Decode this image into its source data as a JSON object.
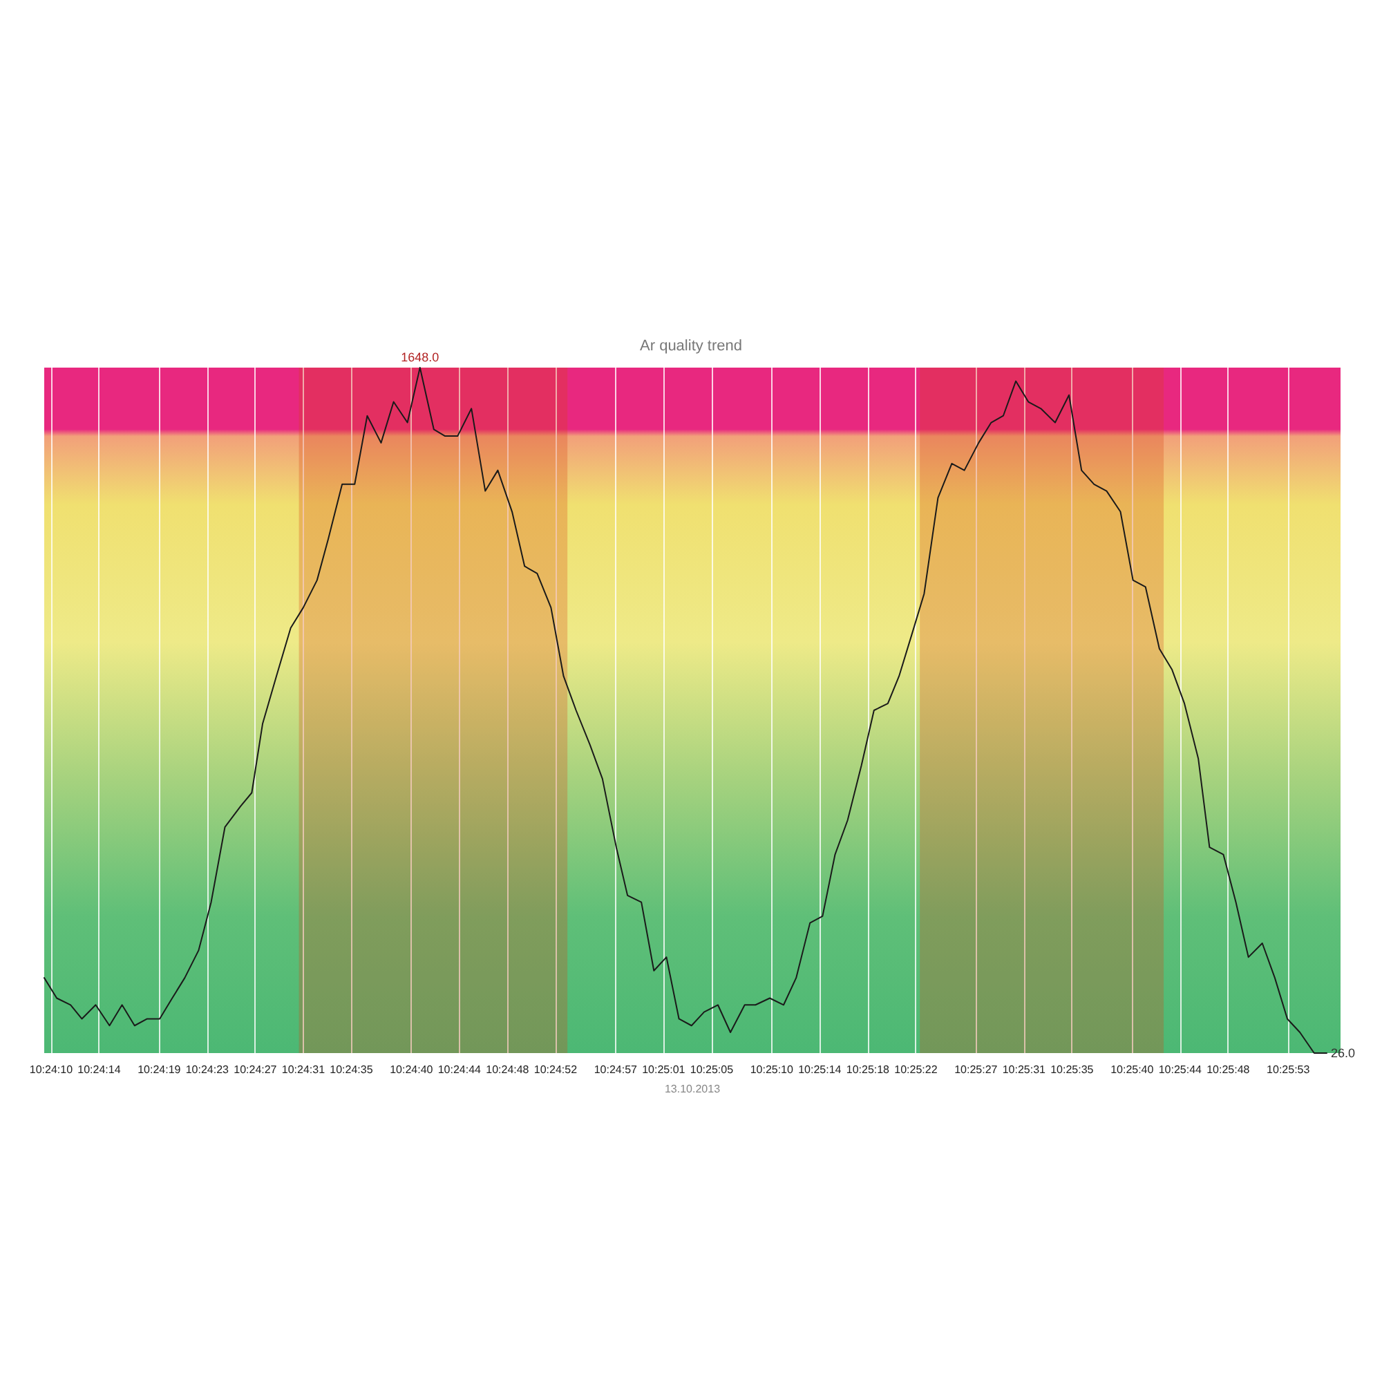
{
  "chart_data": {
    "type": "line",
    "title": "Ar quality trend",
    "xlabel": "13.10.2013",
    "ylim": [
      26,
      1648
    ],
    "grid": "x",
    "marker": "none",
    "line_style": "solid",
    "xlim": [
      10.40262,
      10.4326
    ],
    "xticks": [
      {
        "value": 10.402778,
        "label": "10:24:10"
      },
      {
        "value": 10.403889,
        "label": "10:24:14"
      },
      {
        "value": 10.405278,
        "label": "10:24:19"
      },
      {
        "value": 10.406389,
        "label": "10:24:23"
      },
      {
        "value": 10.4075,
        "label": "10:24:27"
      },
      {
        "value": 10.408611,
        "label": "10:24:31"
      },
      {
        "value": 10.409722,
        "label": "10:24:35"
      },
      {
        "value": 10.411111,
        "label": "10:24:40"
      },
      {
        "value": 10.412222,
        "label": "10:24:44"
      },
      {
        "value": 10.413333,
        "label": "10:24:48"
      },
      {
        "value": 10.414444,
        "label": "10:24:52"
      },
      {
        "value": 10.415833,
        "label": "10:24:57"
      },
      {
        "value": 10.416944,
        "label": "10:25:01"
      },
      {
        "value": 10.418056,
        "label": "10:25:05"
      },
      {
        "value": 10.419444,
        "label": "10:25:10"
      },
      {
        "value": 10.420556,
        "label": "10:25:14"
      },
      {
        "value": 10.421667,
        "label": "10:25:18"
      },
      {
        "value": 10.422778,
        "label": "10:25:22"
      },
      {
        "value": 10.424167,
        "label": "10:25:27"
      },
      {
        "value": 10.425278,
        "label": "10:25:31"
      },
      {
        "value": 10.426389,
        "label": "10:25:35"
      },
      {
        "value": 10.427778,
        "label": "10:25:40"
      },
      {
        "value": 10.428889,
        "label": "10:25:44"
      },
      {
        "value": 10.43,
        "label": "10:25:48"
      },
      {
        "value": 10.431389,
        "label": "10:25:53"
      }
    ],
    "bands": [
      {
        "axis": "x",
        "from": 10.40851,
        "to": 10.41472,
        "label": null,
        "color": "#d84315"
      },
      {
        "axis": "x",
        "from": 10.42287,
        "to": 10.42851,
        "label": null,
        "color": "#d84315"
      }
    ],
    "x": [
      10.40262,
      10.40291,
      10.40323,
      10.40349,
      10.40381,
      10.40413,
      10.40442,
      10.40471,
      10.405,
      10.40529,
      10.40558,
      10.40587,
      10.40619,
      10.40648,
      10.4068,
      10.40716,
      10.40742,
      10.40767,
      10.40799,
      10.40832,
      10.40861,
      10.40893,
      10.40919,
      10.40951,
      10.4098,
      10.41009,
      10.41041,
      10.4107,
      10.41102,
      10.41131,
      10.41163,
      10.41189,
      10.41218,
      10.4125,
      10.41282,
      10.41311,
      10.41344,
      10.41373,
      10.41402,
      10.41434,
      10.41463,
      10.41492,
      10.41524,
      10.41553,
      10.41585,
      10.41611,
      10.41643,
      10.41672,
      10.41701,
      10.4173,
      10.41759,
      10.41788,
      10.4182,
      10.41849,
      10.41882,
      10.41907,
      10.4194,
      10.41972,
      10.42001,
      10.42033,
      10.42062,
      10.42091,
      10.4212,
      10.42152,
      10.42181,
      10.42213,
      10.42239,
      10.42268,
      10.42297,
      10.42329,
      10.42361,
      10.4239,
      10.42423,
      10.42452,
      10.4248,
      10.42509,
      10.42538,
      10.42567,
      10.426,
      10.42632,
      10.42661,
      10.4269,
      10.42719,
      10.42751,
      10.4278,
      10.42809,
      10.42841,
      10.4287,
      10.42899,
      10.42931,
      10.42957,
      10.42989,
      10.43018,
      10.43047,
      10.43079,
      10.43108,
      10.43137,
      10.43166,
      10.43199,
      10.43228
    ],
    "series": [
      {
        "color": "#1a1a1a",
        "values": [
          204,
          156,
          140,
          107,
          140,
          91,
          140,
          91,
          107,
          107,
          156,
          204,
          269,
          383,
          561,
          610,
          642,
          805,
          918,
          1032,
          1080,
          1145,
          1243,
          1372,
          1372,
          1534,
          1470,
          1567,
          1518,
          1648,
          1502,
          1486,
          1486,
          1551,
          1356,
          1405,
          1307,
          1178,
          1161,
          1080,
          918,
          837,
          756,
          675,
          513,
          399,
          383,
          221,
          253,
          107,
          91,
          123,
          140,
          75,
          140,
          140,
          156,
          140,
          204,
          334,
          350,
          496,
          577,
          707,
          837,
          853,
          918,
          1015,
          1113,
          1340,
          1421,
          1405,
          1470,
          1518,
          1534,
          1616,
          1567,
          1551,
          1518,
          1583,
          1405,
          1372,
          1356,
          1307,
          1145,
          1129,
          983,
          934,
          853,
          723,
          513,
          496,
          383,
          253,
          286,
          204,
          107,
          75,
          26,
          26
        ],
        "value_labels": [
          null,
          null,
          null,
          null,
          null,
          null,
          null,
          null,
          null,
          null,
          null,
          null,
          null,
          null,
          null,
          null,
          null,
          null,
          null,
          null,
          null,
          null,
          null,
          null,
          null,
          null,
          null,
          null,
          null,
          "1648.0",
          null,
          null,
          null,
          null,
          null,
          null,
          null,
          null,
          null,
          null,
          null,
          null,
          null,
          null,
          null,
          null,
          null,
          null,
          null,
          null,
          null,
          null,
          null,
          null,
          null,
          null,
          null,
          null,
          null,
          null,
          null,
          null,
          null,
          null,
          null,
          null,
          null,
          null,
          null,
          null,
          null,
          null,
          null,
          null,
          null,
          null,
          null,
          null,
          null,
          null,
          null,
          null,
          null,
          null,
          null,
          null,
          null,
          null,
          null,
          null,
          null,
          null,
          null,
          null,
          null,
          null,
          null,
          null,
          null,
          "26.0"
        ]
      }
    ]
  }
}
